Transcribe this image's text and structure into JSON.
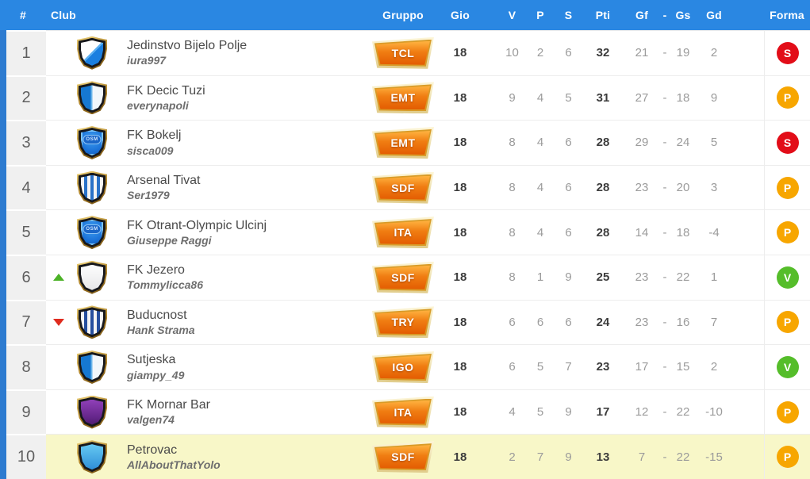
{
  "colors": {
    "header_bg": "#2a87e2",
    "left_strip": "#2d7bd0",
    "rank_col_bg": "#f0f0f0",
    "highlight_row_bg": "#f8f7c8",
    "form_win": "#55bd2a",
    "form_draw": "#f7a600",
    "form_loss": "#e20d18",
    "group_badge_orange": "#f07d12",
    "movement_up": "#4cb227",
    "movement_down": "#df2b1e"
  },
  "header": {
    "rank": "#",
    "club": "Club",
    "gruppo": "Gruppo",
    "gio": "Gio",
    "v": "V",
    "p": "P",
    "s": "S",
    "pti": "Pti",
    "gf": "Gf",
    "dash": "-",
    "gs": "Gs",
    "gd": "Gd",
    "forma": "Forma"
  },
  "rows": [
    {
      "rank": "1",
      "movement": "none",
      "badge_style": "diagonal-white-blue",
      "club": "Jedinstvo Bijelo Polje",
      "manager": "iura997",
      "group": "TCL",
      "gio": "18",
      "v": "10",
      "p": "2",
      "s": "6",
      "pti": "32",
      "gf": "21",
      "dash": "-",
      "gs": "19",
      "gd": "2",
      "forma": "S",
      "forma_color": "#e20d18",
      "highlighted": false
    },
    {
      "rank": "2",
      "movement": "none",
      "badge_style": "half-blue-white",
      "club": "FK Decic Tuzi",
      "manager": "everynapoli",
      "group": "EMT",
      "gio": "18",
      "v": "9",
      "p": "4",
      "s": "5",
      "pti": "31",
      "gf": "27",
      "dash": "-",
      "gs": "18",
      "gd": "9",
      "forma": "P",
      "forma_color": "#f7a600",
      "highlighted": false
    },
    {
      "rank": "3",
      "movement": "none",
      "badge_style": "osm-blue",
      "badge_label": "OSM",
      "club": "FK Bokelj",
      "manager": "sisca009",
      "group": "EMT",
      "gio": "18",
      "v": "8",
      "p": "4",
      "s": "6",
      "pti": "28",
      "gf": "29",
      "dash": "-",
      "gs": "24",
      "gd": "5",
      "forma": "S",
      "forma_color": "#e20d18",
      "highlighted": false
    },
    {
      "rank": "4",
      "movement": "none",
      "badge_style": "stripes-blue-white-dark",
      "club": "Arsenal Tivat",
      "manager": "Ser1979",
      "group": "SDF",
      "gio": "18",
      "v": "8",
      "p": "4",
      "s": "6",
      "pti": "28",
      "gf": "23",
      "dash": "-",
      "gs": "20",
      "gd": "3",
      "forma": "P",
      "forma_color": "#f7a600",
      "highlighted": false
    },
    {
      "rank": "5",
      "movement": "none",
      "badge_style": "osm-blue",
      "badge_label": "OSM",
      "club": "FK Otrant-Olympic Ulcinj",
      "manager": "Giuseppe Raggi",
      "group": "ITA",
      "gio": "18",
      "v": "8",
      "p": "4",
      "s": "6",
      "pti": "28",
      "gf": "14",
      "dash": "-",
      "gs": "18",
      "gd": "-4",
      "forma": "P",
      "forma_color": "#f7a600",
      "highlighted": false
    },
    {
      "rank": "6",
      "movement": "up",
      "badge_style": "solid-white",
      "club": "FK Jezero",
      "manager": "Tommylicca86",
      "group": "SDF",
      "gio": "18",
      "v": "8",
      "p": "1",
      "s": "9",
      "pti": "25",
      "gf": "23",
      "dash": "-",
      "gs": "22",
      "gd": "1",
      "forma": "V",
      "forma_color": "#55bd2a",
      "highlighted": false
    },
    {
      "rank": "7",
      "movement": "down",
      "badge_style": "stripes-navy-white",
      "club": "Buducnost",
      "manager": "Hank Strama",
      "group": "TRY",
      "gio": "18",
      "v": "6",
      "p": "6",
      "s": "6",
      "pti": "24",
      "gf": "23",
      "dash": "-",
      "gs": "16",
      "gd": "7",
      "forma": "P",
      "forma_color": "#f7a600",
      "highlighted": false
    },
    {
      "rank": "8",
      "movement": "none",
      "badge_style": "half-blue-white",
      "club": "Sutjeska",
      "manager": "giampy_49",
      "group": "IGO",
      "gio": "18",
      "v": "6",
      "p": "5",
      "s": "7",
      "pti": "23",
      "gf": "17",
      "dash": "-",
      "gs": "15",
      "gd": "2",
      "forma": "V",
      "forma_color": "#55bd2a",
      "highlighted": false
    },
    {
      "rank": "9",
      "movement": "none",
      "badge_style": "solid-purple",
      "club": "FK Mornar Bar",
      "manager": "valgen74",
      "group": "ITA",
      "gio": "18",
      "v": "4",
      "p": "5",
      "s": "9",
      "pti": "17",
      "gf": "12",
      "dash": "-",
      "gs": "22",
      "gd": "-10",
      "forma": "P",
      "forma_color": "#f7a600",
      "highlighted": false
    },
    {
      "rank": "10",
      "movement": "none",
      "badge_style": "solid-skyblue",
      "club": "Petrovac",
      "manager": "AllAboutThatYolo",
      "group": "SDF",
      "gio": "18",
      "v": "2",
      "p": "7",
      "s": "9",
      "pti": "13",
      "gf": "7",
      "dash": "-",
      "gs": "22",
      "gd": "-15",
      "forma": "P",
      "forma_color": "#f7a600",
      "highlighted": true
    }
  ]
}
